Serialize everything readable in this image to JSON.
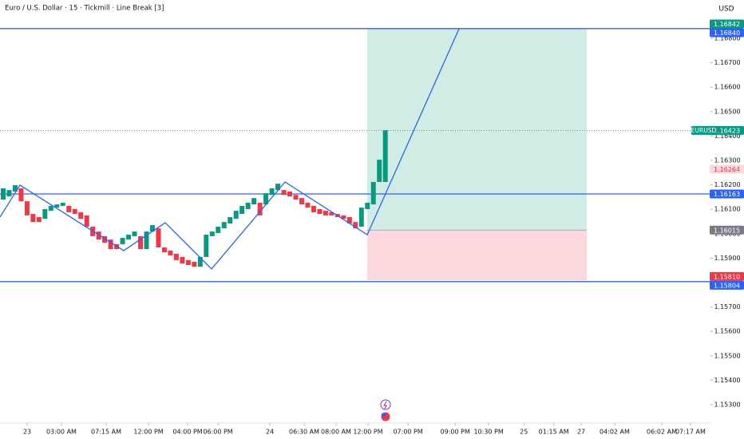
{
  "chart_data": {
    "type": "candlestick",
    "title": "Euro / U.S. Dollar · 15 · Tickmill · Line Break [3]",
    "currency": "USD",
    "up_color": "#089981",
    "down_color": "#f23645",
    "open": [
      1.1614,
      1.16153,
      1.16173,
      1.16186,
      1.16133,
      1.16081,
      1.16068,
      1.16061,
      1.16094,
      1.16107,
      1.16114,
      1.16114,
      1.16101,
      1.16088,
      1.16075,
      1.16029,
      1.16009,
      1.1599,
      1.15976,
      1.15957,
      1.15957,
      1.15976,
      1.1599,
      1.1599,
      1.15937,
      1.16009,
      1.16022,
      1.15944,
      1.15931,
      1.15918,
      1.15905,
      1.15892,
      1.15885,
      1.15865,
      1.15905,
      1.1599,
      1.16003,
      1.16022,
      1.16042,
      1.16061,
      1.16081,
      1.16101,
      1.1612,
      1.16127,
      1.1612,
      1.16159,
      1.16179,
      1.16179,
      1.16173,
      1.16159,
      1.16146,
      1.16127,
      1.16114,
      1.16101,
      1.16094,
      1.16088,
      1.16081,
      1.16075,
      1.16068,
      1.16048,
      1.16029,
      1.16101,
      1.1612,
      1.16212,
      1.16212
    ],
    "close": [
      1.16186,
      1.16179,
      1.16199,
      1.16133,
      1.16075,
      1.16048,
      1.16048,
      1.16101,
      1.16114,
      1.1612,
      1.16127,
      1.16088,
      1.16081,
      1.16061,
      1.16029,
      1.1599,
      1.15976,
      1.15963,
      1.15937,
      1.15937,
      1.15983,
      1.15996,
      1.16009,
      1.15937,
      1.16009,
      1.16035,
      1.15944,
      1.15924,
      1.15911,
      1.15892,
      1.15878,
      1.15872,
      1.15865,
      1.15905,
      1.15996,
      1.16009,
      1.16029,
      1.16048,
      1.16068,
      1.16094,
      1.16114,
      1.16127,
      1.16146,
      1.16075,
      1.16166,
      1.16186,
      1.16205,
      1.16159,
      1.16153,
      1.1614,
      1.1612,
      1.16107,
      1.16088,
      1.16081,
      1.16075,
      1.16075,
      1.16068,
      1.16061,
      1.16042,
      1.16022,
      1.16107,
      1.16127,
      1.16212,
      1.16303,
      1.16424
    ],
    "xlim": [
      -0.53,
      118.45
    ],
    "xticks": [
      {
        "value": 4.02,
        "label": "23"
      },
      {
        "value": 9.76,
        "label": "03:00 AM"
      },
      {
        "value": 17.25,
        "label": "07:15 AM"
      },
      {
        "value": 24.34,
        "label": "12:00 PM"
      },
      {
        "value": 30.89,
        "label": "04:00 PM"
      },
      {
        "value": 35.97,
        "label": "06:00 PM"
      },
      {
        "value": 44.66,
        "label": "24"
      },
      {
        "value": 50.41,
        "label": "06:30 AM"
      },
      {
        "value": 55.75,
        "label": "08:00 AM"
      },
      {
        "value": 61.1,
        "label": "12:00 PM"
      },
      {
        "value": 67.8,
        "label": "07:00 PM"
      },
      {
        "value": 75.7,
        "label": "09:00 PM"
      },
      {
        "value": 81.3,
        "label": "10:30 PM"
      },
      {
        "value": 87.2,
        "label": "25"
      },
      {
        "value": 92.2,
        "label": "01:15 AM"
      },
      {
        "value": 96.8,
        "label": "27"
      },
      {
        "value": 102.4,
        "label": "04:02 AM"
      },
      {
        "value": 110.3,
        "label": "06:02 AM"
      },
      {
        "value": 115.1,
        "label": "07:17 AM"
      }
    ],
    "ylim": [
      1.15225,
      1.16957
    ],
    "yticks": [
      {
        "value": 1.168,
        "label": "1.16800"
      },
      {
        "value": 1.167,
        "label": "1.16700"
      },
      {
        "value": 1.166,
        "label": "1.16600"
      },
      {
        "value": 1.165,
        "label": "1.16500"
      },
      {
        "value": 1.164,
        "label": "1.16400"
      },
      {
        "value": 1.163,
        "label": "1.16300"
      },
      {
        "value": 1.162,
        "label": "1.16200"
      },
      {
        "value": 1.161,
        "label": "1.16100"
      },
      {
        "value": 1.16,
        "label": "1.16000"
      },
      {
        "value": 1.159,
        "label": "1.15900"
      },
      {
        "value": 1.158,
        "label": "1.15800"
      },
      {
        "value": 1.157,
        "label": "1.15700"
      },
      {
        "value": 1.156,
        "label": "1.15600"
      },
      {
        "value": 1.155,
        "label": "1.15500"
      },
      {
        "value": 1.154,
        "label": "1.15400"
      },
      {
        "value": 1.153,
        "label": "1.15300"
      }
    ],
    "levels": {
      "values": [
        1.1684,
        1.16163,
        1.15804
      ],
      "color": "#2962ff"
    },
    "price_line": {
      "value": 1.16423,
      "color": "#089981"
    },
    "trend_line": {
      "color": "#2962ff",
      "x": [
        -0.53,
        2.81,
        20.19,
        27.14,
        34.9,
        47.2,
        60.97,
        76.34
      ],
      "y": [
        1.16068,
        1.16199,
        1.15931,
        1.16045,
        1.15856,
        1.16212,
        1.15996,
        1.16839
      ]
    },
    "position": {
      "x": [
        60.97,
        97.73
      ],
      "entry": 1.16015,
      "target": 1.16842,
      "stop": 1.1581,
      "target_color": "#d1ece4",
      "stop_color": "#fbd8dc"
    },
    "price_tags": [
      {
        "value": 1.16842,
        "color": "#089981",
        "text_color": "#ffffff"
      },
      {
        "value": 1.1684,
        "label": "1.16840",
        "color": "#2962ff",
        "text_color": "#ffffff"
      },
      {
        "value": 1.16423,
        "name": "EURUSD",
        "color": "#089981",
        "text_color": "#ffffff"
      },
      {
        "value": 1.16264,
        "color": "#fbd8dc",
        "text_color": "#f23645"
      },
      {
        "value": 1.16163,
        "color": "#2962ff",
        "text_color": "#ffffff"
      },
      {
        "value": 1.16015,
        "color": "#787b86",
        "text_color": "#ffffff"
      },
      {
        "value": 1.1581,
        "label": "1.15810",
        "color": "#f23645",
        "text_color": "#ffffff"
      },
      {
        "value": 1.15804,
        "color": "#2962ff",
        "text_color": "#ffffff"
      }
    ]
  }
}
